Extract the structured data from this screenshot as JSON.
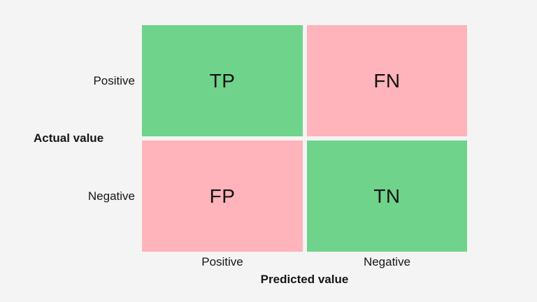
{
  "background": "#f4f4f4",
  "colors": {
    "green": "#6fd38b",
    "pink": "#ffb3ba",
    "text": "#161616"
  },
  "matrix": {
    "row_axis_label": "Actual value",
    "col_axis_label": "Predicted value",
    "row_labels": [
      "Positive",
      "Negative"
    ],
    "col_labels": [
      "Positive",
      "Negative"
    ],
    "cells": [
      {
        "label": "TP",
        "color": "#6fd38b"
      },
      {
        "label": "FN",
        "color": "#ffb3ba"
      },
      {
        "label": "FP",
        "color": "#ffb3ba"
      },
      {
        "label": "TN",
        "color": "#6fd38b"
      }
    ]
  }
}
